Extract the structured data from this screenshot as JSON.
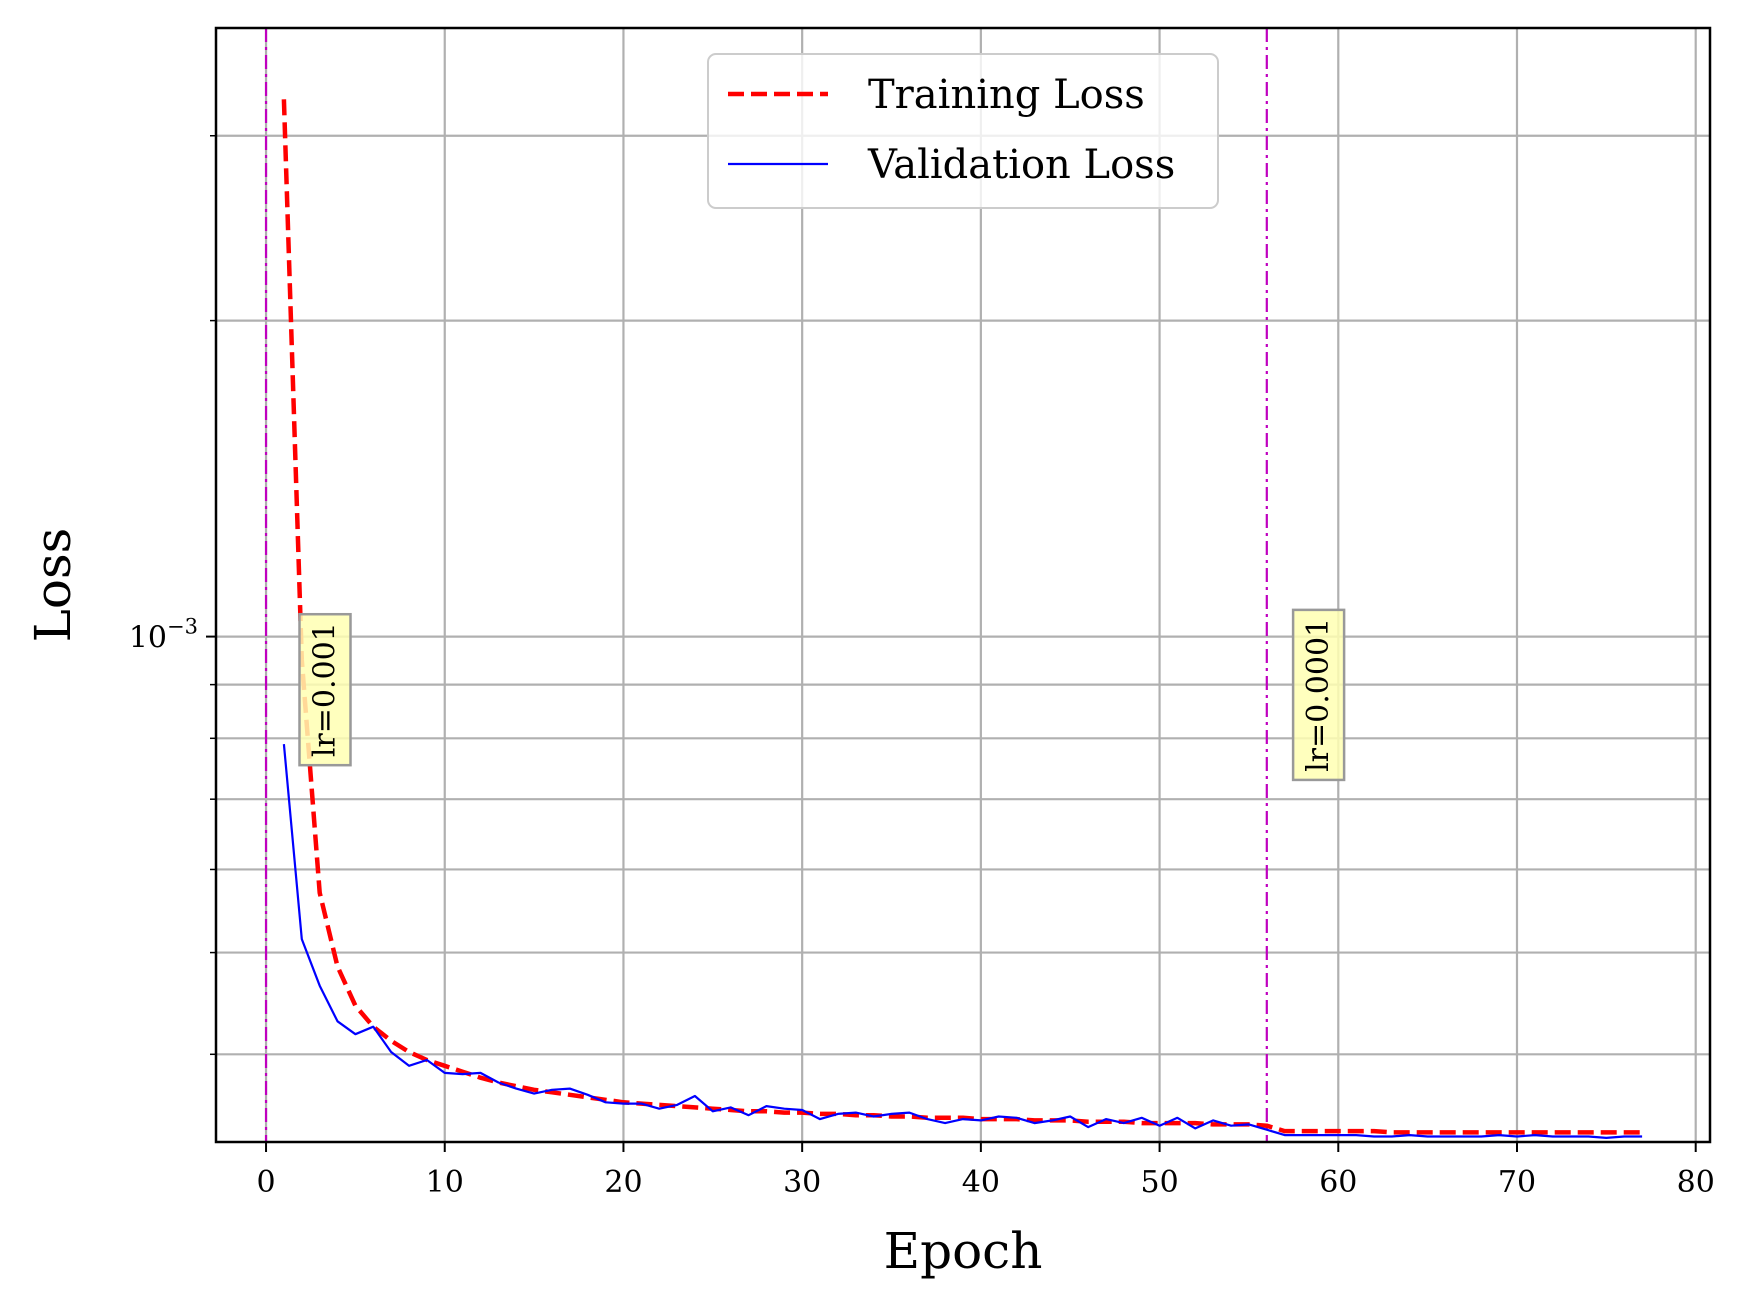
{
  "chart_data": {
    "type": "line",
    "xlabel": "Epoch",
    "ylabel": "Loss",
    "xlim": [
      -2.8,
      80.8
    ],
    "ylim": [
      0.00033,
      0.0038
    ],
    "yscale": "log",
    "grid": true,
    "grid_which": "both",
    "legend_position": "top-center",
    "x_ticks": [
      0,
      10,
      20,
      30,
      40,
      50,
      60,
      70,
      80
    ],
    "x_tick_labels": [
      "0",
      "10",
      "20",
      "30",
      "40",
      "50",
      "60",
      "70",
      "80"
    ],
    "y_major_ticks": [
      0.001
    ],
    "y_major_tick_labels": [
      {
        "base": "10",
        "exp": "−3"
      }
    ],
    "series": [
      {
        "name": "Training Loss",
        "color": "#ff0000",
        "style": "dashed",
        "x": [
          1,
          2,
          3,
          4,
          5,
          6,
          7,
          8,
          9,
          10,
          11,
          12,
          13,
          14,
          15,
          16,
          17,
          18,
          19,
          20,
          21,
          22,
          23,
          24,
          25,
          26,
          27,
          28,
          29,
          30,
          31,
          32,
          33,
          34,
          35,
          36,
          37,
          38,
          39,
          40,
          41,
          42,
          43,
          44,
          45,
          46,
          47,
          48,
          49,
          50,
          51,
          52,
          53,
          54,
          55,
          56,
          57,
          58,
          59,
          60,
          61,
          62,
          63,
          64,
          65,
          66,
          67,
          68,
          69,
          70,
          71,
          72,
          73,
          74,
          75,
          76,
          77
        ],
        "y": [
          0.00325,
          0.00095,
          0.00057,
          0.000485,
          0.000445,
          0.000425,
          0.000412,
          0.000402,
          0.000395,
          0.00039,
          0.000385,
          0.00038,
          0.000376,
          0.000373,
          0.00037,
          0.000368,
          0.000366,
          0.000364,
          0.000362,
          0.00036,
          0.000359,
          0.000358,
          0.000357,
          0.000356,
          0.000355,
          0.000354,
          0.000353,
          0.000353,
          0.000352,
          0.000352,
          0.000351,
          0.000351,
          0.00035,
          0.00035,
          0.000349,
          0.000349,
          0.000348,
          0.000348,
          0.000348,
          0.000347,
          0.000347,
          0.000347,
          0.000346,
          0.000346,
          0.000346,
          0.000345,
          0.000345,
          0.000345,
          0.000344,
          0.000344,
          0.000344,
          0.000344,
          0.000343,
          0.000343,
          0.000343,
          0.000342,
          0.000338,
          0.000338,
          0.000338,
          0.000338,
          0.000338,
          0.000338,
          0.000337,
          0.000337,
          0.000337,
          0.000337,
          0.000337,
          0.000337,
          0.000337,
          0.000337,
          0.000337,
          0.000337,
          0.000337,
          0.000337,
          0.000337,
          0.000337,
          0.000337
        ]
      },
      {
        "name": "Validation Loss",
        "color": "#0000ff",
        "style": "solid",
        "x": [
          1,
          2,
          3,
          4,
          5,
          6,
          7,
          8,
          9,
          10,
          11,
          12,
          13,
          14,
          15,
          16,
          17,
          18,
          19,
          20,
          21,
          22,
          23,
          24,
          25,
          26,
          27,
          28,
          29,
          30,
          31,
          32,
          33,
          34,
          35,
          36,
          37,
          38,
          39,
          40,
          41,
          42,
          43,
          44,
          45,
          46,
          47,
          48,
          49,
          50,
          51,
          52,
          53,
          54,
          55,
          56,
          57,
          58,
          59,
          60,
          61,
          62,
          63,
          64,
          65,
          66,
          67,
          68,
          69,
          70,
          71,
          72,
          73,
          74,
          75,
          76,
          77
        ],
        "y": [
          0.00079,
          0.000515,
          0.000465,
          0.00043,
          0.000418,
          0.000425,
          0.000402,
          0.00039,
          0.000395,
          0.000384,
          0.000383,
          0.000384,
          0.000376,
          0.000371,
          0.000367,
          0.00037,
          0.000371,
          0.000366,
          0.00036,
          0.000359,
          0.000359,
          0.000355,
          0.000358,
          0.000365,
          0.000353,
          0.000356,
          0.00035,
          0.000357,
          0.000355,
          0.000354,
          0.000347,
          0.000351,
          0.000352,
          0.000349,
          0.000351,
          0.000352,
          0.000347,
          0.000344,
          0.000347,
          0.000346,
          0.000349,
          0.000348,
          0.000344,
          0.000346,
          0.000349,
          0.000341,
          0.000347,
          0.000344,
          0.000348,
          0.000342,
          0.000348,
          0.00034,
          0.000346,
          0.000342,
          0.000343,
          0.000339,
          0.000335,
          0.000335,
          0.000335,
          0.000335,
          0.000335,
          0.000334,
          0.000334,
          0.000335,
          0.000334,
          0.000334,
          0.000334,
          0.000334,
          0.000335,
          0.000334,
          0.000335,
          0.000334,
          0.000334,
          0.000334,
          0.000333,
          0.000334,
          0.000334
        ]
      }
    ],
    "vlines": [
      {
        "x": 0,
        "color": "#bf00bf",
        "style": "dashdot"
      },
      {
        "x": 56,
        "color": "#bf00bf",
        "style": "dashdot"
      }
    ],
    "annotations": [
      {
        "text": "lr=0.001",
        "x": 3.3,
        "y": 0.00089,
        "rotation": -90,
        "box_color": "#ffffb3"
      },
      {
        "text": "lr=0.0001",
        "x": 58.9,
        "y": 0.00088,
        "rotation": -90,
        "box_color": "#ffffb3"
      }
    ]
  }
}
